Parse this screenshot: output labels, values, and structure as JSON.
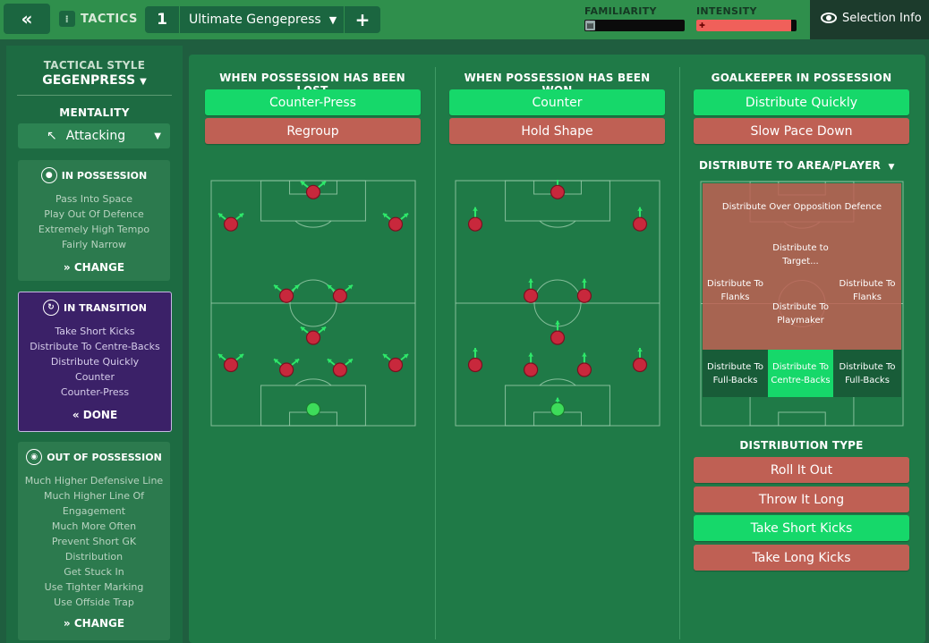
{
  "header": {
    "back_icon": "double-chevron-left-icon",
    "tactics_label": "TACTICS",
    "tactic_number": "1",
    "tactic_name": "Ultimate Gengepress",
    "add_label": "+",
    "familiarity_label": "FAMILIARITY",
    "intensity_label": "INTENSITY",
    "familiarity_level": 0.05,
    "intensity_level": 0.95,
    "selection_info_label": "Selection Info"
  },
  "sidebar": {
    "tactical_style_label": "TACTICAL STYLE",
    "tactical_style_value": "GEGENPRESS",
    "mentality_label": "MENTALITY",
    "mentality_value": "Attacking",
    "in_possession": {
      "title": "IN POSSESSION",
      "items": [
        "Pass Into Space",
        "Play Out Of Defence",
        "Extremely High Tempo",
        "Fairly Narrow"
      ],
      "button": "CHANGE"
    },
    "in_transition": {
      "title": "IN TRANSITION",
      "items": [
        "Take Short Kicks",
        "Distribute To Centre-Backs",
        "Distribute Quickly",
        "Counter",
        "Counter-Press"
      ],
      "button": "DONE"
    },
    "out_of_possession": {
      "title": "OUT OF POSSESSION",
      "items": [
        "Much Higher Defensive Line",
        "Much Higher Line Of",
        "Engagement",
        "Much More Often",
        "Prevent Short GK",
        "Distribution",
        "Get Stuck In",
        "Use Tighter Marking",
        "Use Offside Trap"
      ],
      "button": "CHANGE"
    }
  },
  "lost": {
    "title": "WHEN POSSESSION HAS BEEN LOST",
    "options": [
      {
        "label": "Counter-Press",
        "selected": true
      },
      {
        "label": "Regroup",
        "selected": false
      }
    ]
  },
  "won": {
    "title": "WHEN POSSESSION HAS BEEN WON",
    "options": [
      {
        "label": "Counter",
        "selected": true
      },
      {
        "label": "Hold Shape",
        "selected": false
      }
    ]
  },
  "goalkeeper": {
    "title": "GOALKEEPER IN POSSESSION",
    "options": [
      {
        "label": "Distribute Quickly",
        "selected": true
      },
      {
        "label": "Slow Pace Down",
        "selected": false
      }
    ],
    "distribute_title": "DISTRIBUTE TO AREA/PLAYER",
    "zones": {
      "over_defence": "Distribute Over Opposition Defence",
      "target": "Distribute to Target...",
      "flanks_left": "Distribute To Flanks",
      "flanks_right": "Distribute To Flanks",
      "playmaker": "Distribute To Playmaker",
      "fullbacks_left": "Distribute To Full-Backs",
      "centrebacks": "Distribute To Centre-Backs",
      "fullbacks_right": "Distribute To Full-Backs"
    },
    "distribution_type_title": "DISTRIBUTION TYPE",
    "distribution_types": [
      {
        "label": "Roll It Out",
        "selected": false
      },
      {
        "label": "Throw It Long",
        "selected": false
      },
      {
        "label": "Take Short Kicks",
        "selected": true
      },
      {
        "label": "Take Long Kicks",
        "selected": false
      }
    ]
  },
  "colors": {
    "selected": "#16d86a",
    "unselected": "#bf6054",
    "player": "#c8283c",
    "goalkeeper": "#3ddc5a",
    "arrow": "#2ee86a"
  }
}
